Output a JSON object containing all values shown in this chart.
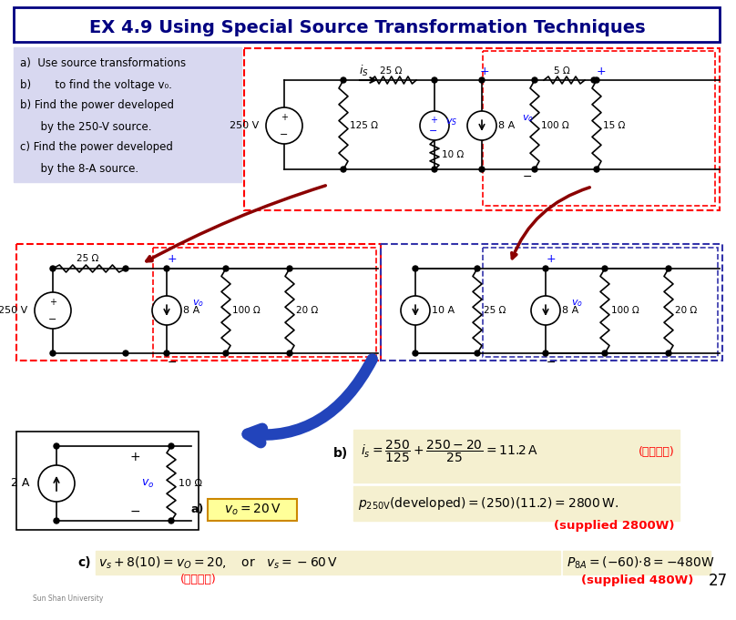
{
  "title": "EX 4.9 Using Special Source Transformation Techniques",
  "bg_color": "#ffffff",
  "title_border": "#000080",
  "problem_bg": "#d8d8f0",
  "problem_text": [
    "a)  Use source transformations",
    "b)       to find the voltage v₀.",
    "b) Find the power developed",
    "      by the 250-V source.",
    "c) Find the power developed",
    "      by the 8-A source."
  ],
  "eq_bg": "#f5f0d0",
  "page_num": "27"
}
